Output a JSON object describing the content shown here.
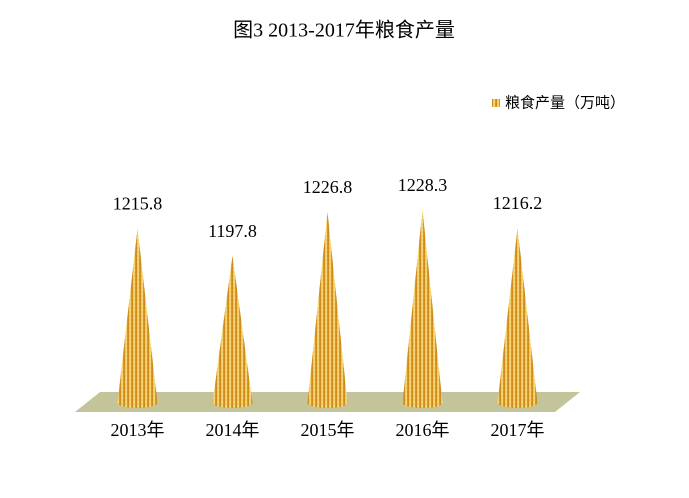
{
  "chart_data": {
    "type": "cone",
    "title": "图3 2013-2017年粮食产量",
    "categories": [
      "2013年",
      "2014年",
      "2015年",
      "2016年",
      "2017年"
    ],
    "series": [
      {
        "name": "粮食产量（万吨）",
        "color": "#f2b22c",
        "values": [
          1215.8,
          1197.8,
          1226.8,
          1228.3,
          1216.2
        ]
      }
    ],
    "ylim": [
      1100,
      1250
    ],
    "floor_color": "#c4c49a",
    "legend": "top-right"
  }
}
